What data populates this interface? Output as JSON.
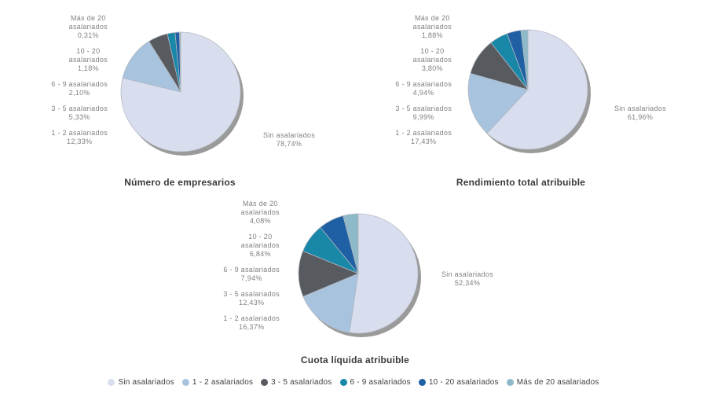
{
  "style": {
    "background": "#ffffff",
    "shadow_color": "#9a9a9a",
    "slice_stroke": "#b3b8c0",
    "label_color": "#808080",
    "title_color": "#3a3a3a",
    "legend_text_color": "#3f3f3f"
  },
  "categories": [
    {
      "label": "Sin asalariados",
      "lines": [
        "Sin asalariados"
      ],
      "color": "#d9deef"
    },
    {
      "label": "1 - 2 asalariados",
      "lines": [
        "1 - 2 asalariados"
      ],
      "color": "#a7c3de"
    },
    {
      "label": "3 - 5 asalariados",
      "lines": [
        "3 - 5 asalariados"
      ],
      "color": "#575b60"
    },
    {
      "label": "6 - 9 asalariados",
      "lines": [
        "6 - 9 asalariados"
      ],
      "color": "#1987a8"
    },
    {
      "label": "10 - 20 asalariados",
      "lines": [
        "10 - 20",
        "asalariados"
      ],
      "color": "#1f60a5"
    },
    {
      "label": "Más de 20 asalariados",
      "lines": [
        "Más de 20",
        "asalariados"
      ],
      "color": "#8db9c8"
    }
  ],
  "legend": {
    "position": "bottom",
    "items": [
      "Sin asalariados",
      "1 - 2 asalariados",
      "3 - 5 asalariados",
      "6 - 9 asalariados",
      "10 - 20 asalariados",
      "Más de 20 asalariados"
    ]
  },
  "chart_data": [
    {
      "type": "pie",
      "title": "Número de empresarios",
      "categories": [
        "Sin asalariados",
        "1 - 2 asalariados",
        "3 - 5 asalariados",
        "6 - 9 asalariados",
        "10 - 20 asalariados",
        "Más de 20 asalariados"
      ],
      "values": [
        78.74,
        12.33,
        5.33,
        2.1,
        1.18,
        0.31
      ],
      "percent_labels": [
        "78,74%",
        "12,33%",
        "5,33%",
        "2,10%",
        "1,18%",
        "0,31%"
      ],
      "start_angle_deg": 0,
      "direction": "clockwise"
    },
    {
      "type": "pie",
      "title": "Rendimiento total atribuible",
      "categories": [
        "Sin asalariados",
        "1 - 2 asalariados",
        "3 - 5 asalariados",
        "6 - 9 asalariados",
        "10 - 20 asalariados",
        "Más de 20 asalariados"
      ],
      "values": [
        61.96,
        17.43,
        9.99,
        4.94,
        3.8,
        1.88
      ],
      "percent_labels": [
        "61,96%",
        "17,43%",
        "9,99%",
        "4,94%",
        "3,80%",
        "1,88%"
      ],
      "start_angle_deg": 0,
      "direction": "clockwise"
    },
    {
      "type": "pie",
      "title": "Cuota líquida atribuible",
      "categories": [
        "Sin asalariados",
        "1 - 2 asalariados",
        "3 - 5 asalariados",
        "6 - 9 asalariados",
        "10 - 20 asalariados",
        "Más de 20 asalariados"
      ],
      "values": [
        52.34,
        16.37,
        12.43,
        7.94,
        6.84,
        4.08
      ],
      "percent_labels": [
        "52,34%",
        "16,37%",
        "12,43%",
        "7,94%",
        "6,84%",
        "4,08%"
      ],
      "start_angle_deg": 0,
      "direction": "clockwise"
    }
  ]
}
